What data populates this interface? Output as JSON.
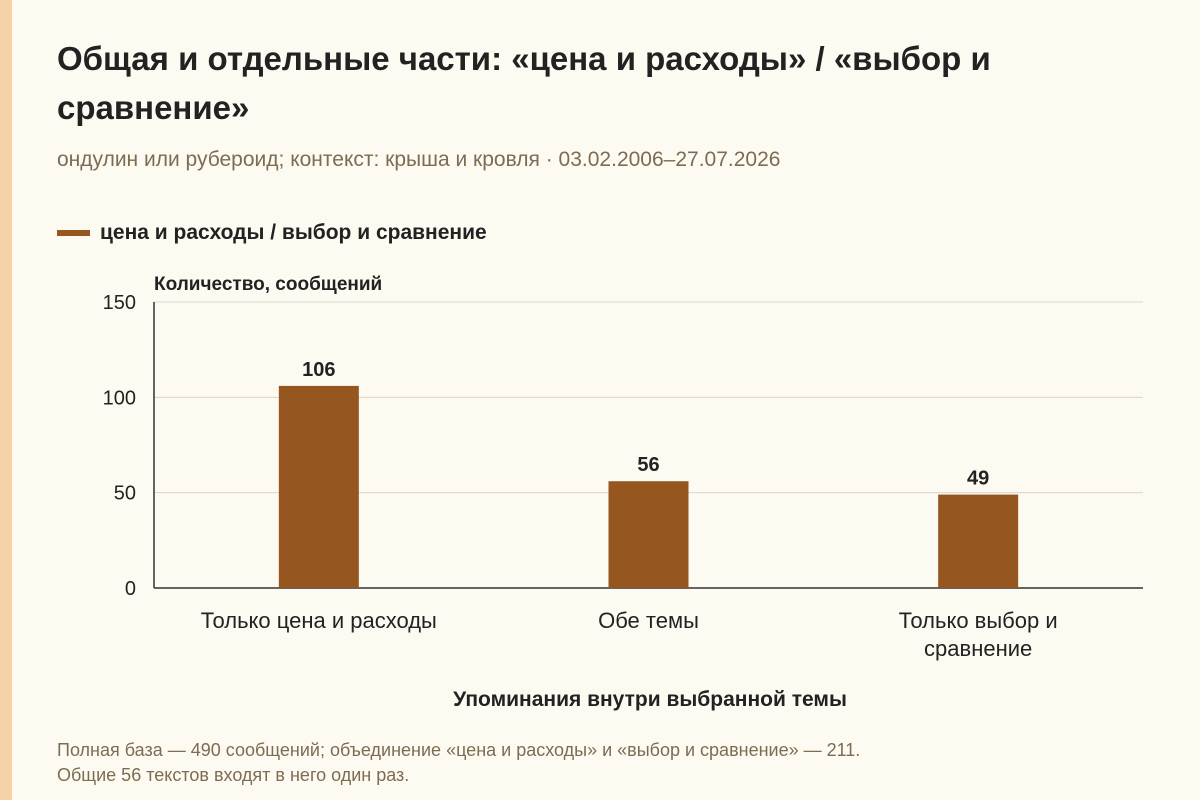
{
  "title": "Общая и отдельные части: «цена и расходы» / «выбор и сравнение»",
  "subtitle": "ондулин или рубероид; контекст: крыша и кровля · 03.02.2006–27.07.2026",
  "colors": {
    "background": "#fdfbf1",
    "accent_strip": "#f5d3a6",
    "bar": "#955620",
    "grid": "#d9d6cc",
    "axis": "#333333",
    "text": "#222222",
    "muted_text": "#7d6b52"
  },
  "chart_data": {
    "type": "bar",
    "categories": [
      [
        "Только цена и расходы"
      ],
      [
        "Обе темы"
      ],
      [
        "Только выбор и",
        "сравнение"
      ]
    ],
    "series": [
      {
        "name": "цена и расходы / выбор и сравнение",
        "values": [
          106,
          56,
          49
        ]
      }
    ],
    "data_labels": [
      "106",
      "56",
      "49"
    ],
    "xlabel": "Упоминания внутри выбранной темы",
    "ylabel": "Количество, сообщений",
    "ylim": [
      0,
      150
    ],
    "yticks": [
      0,
      50,
      100,
      150
    ],
    "grid": true,
    "legend_position": "top-left"
  },
  "footnote": {
    "line1": "Полная база — 490 сообщений; объединение «цена и расходы» и «выбор и сравнение» — 211.",
    "line2": "Общие 56 текстов входят в него один раз."
  }
}
